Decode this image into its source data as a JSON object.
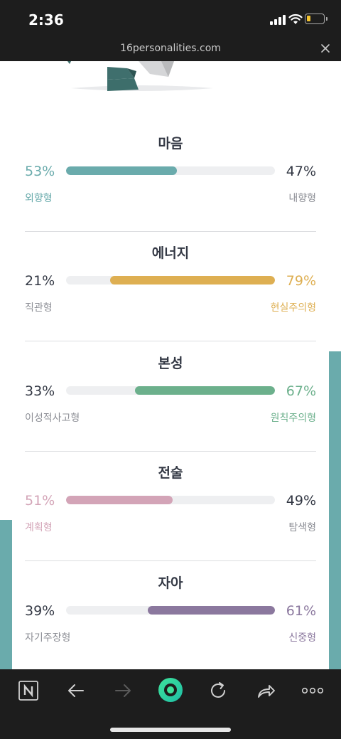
{
  "status": {
    "time": "2:36"
  },
  "browser": {
    "url": "16personalities.com"
  },
  "traits": [
    {
      "title": "마음",
      "left_pct": "53%",
      "right_pct": "47%",
      "left_label": "외향형",
      "right_label": "내향형",
      "fill_side": "left",
      "fill_percent": 53,
      "color": "#6aabac"
    },
    {
      "title": "에너지",
      "left_pct": "21%",
      "right_pct": "79%",
      "left_label": "직관형",
      "right_label": "현실주의형",
      "fill_side": "right",
      "fill_percent": 79,
      "color": "#deaf52"
    },
    {
      "title": "본성",
      "left_pct": "33%",
      "right_pct": "67%",
      "left_label": "이성적사고형",
      "right_label": "원칙주의형",
      "fill_side": "right",
      "fill_percent": 67,
      "color": "#6cb08c"
    },
    {
      "title": "전술",
      "left_pct": "51%",
      "right_pct": "49%",
      "left_label": "계획형",
      "right_label": "탐색형",
      "fill_side": "left",
      "fill_percent": 51,
      "color": "#d3a4b7"
    },
    {
      "title": "자아",
      "left_pct": "39%",
      "right_pct": "61%",
      "left_label": "자기주장형",
      "right_label": "신중형",
      "fill_side": "right",
      "fill_percent": 61,
      "color": "#8b789e"
    }
  ],
  "colors": {
    "text_dark": "#333844",
    "text_muted": "#8d8f96",
    "teal_accent": "#6aabac",
    "toolbar_bg": "#1d1d1d"
  },
  "toolbar": {
    "icons": [
      "naver-n-icon",
      "back-arrow-icon",
      "forward-arrow-icon",
      "green-dot-icon",
      "reload-icon",
      "share-icon",
      "more-icon"
    ]
  }
}
